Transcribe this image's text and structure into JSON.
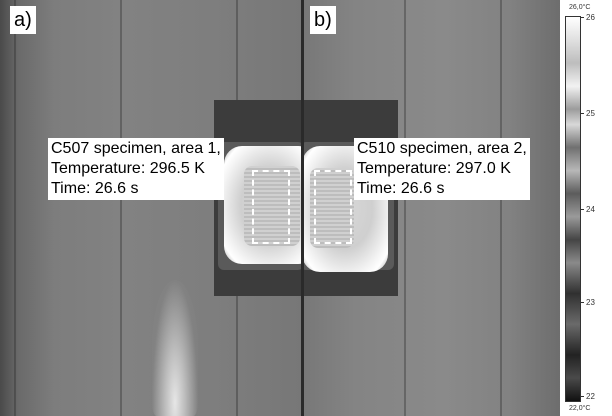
{
  "panels": {
    "a": {
      "label": "a)",
      "info": [
        "C507 specimen, area 1,",
        "Temperature: 296.5 K",
        "Time: 26.6 s"
      ]
    },
    "b": {
      "label": "b)",
      "info": [
        "C510 specimen, area 2,",
        "Temperature: 297.0 K",
        "Time: 26.6 s"
      ]
    }
  },
  "colorbar": {
    "max_label": "26,0°C",
    "min_label": "22,0°C",
    "ticks": [
      "26",
      "25",
      "24",
      "23",
      "22"
    ]
  }
}
